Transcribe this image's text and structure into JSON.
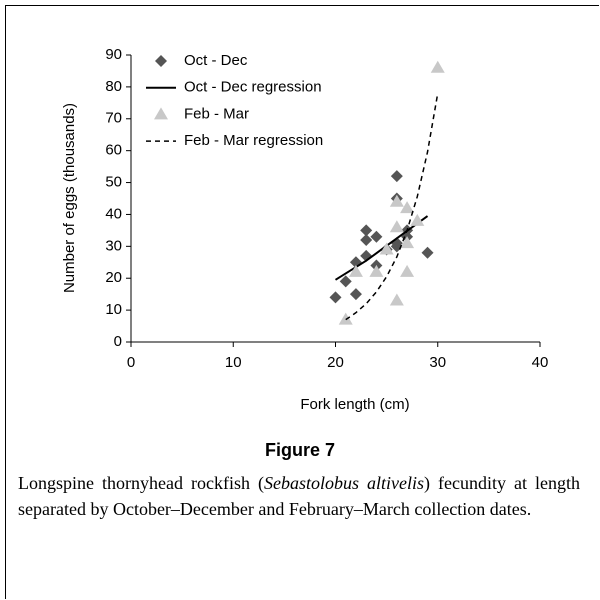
{
  "chart_data": {
    "type": "scatter",
    "xlabel": "Fork length (cm)",
    "ylabel": "Number of eggs (thousands)",
    "xlim": [
      0,
      40
    ],
    "xticks": [
      0,
      10,
      20,
      30,
      40
    ],
    "ylim": [
      0,
      90
    ],
    "yticks": [
      0,
      10,
      20,
      30,
      40,
      50,
      60,
      70,
      80,
      90
    ],
    "grid": false,
    "legend": "upper left",
    "series": [
      {
        "name": "Oct - Dec",
        "color": "#555555",
        "marker": "diamond",
        "x": [
          20,
          21,
          22,
          22,
          23,
          23,
          23,
          24,
          24,
          25,
          26,
          26,
          26,
          26,
          27,
          27,
          29
        ],
        "values": [
          14,
          19,
          25,
          15,
          35,
          32,
          27,
          33,
          24,
          29,
          52,
          45,
          31,
          30,
          35,
          33,
          28
        ]
      },
      {
        "name": "Oct - Dec regression",
        "color": "#000000",
        "marker": "line-solid",
        "x": [
          20,
          23,
          26,
          29
        ],
        "values": [
          19.5,
          25.5,
          32.5,
          39.5
        ]
      },
      {
        "name": "Feb - Mar",
        "color": "#c8c8c8",
        "marker": "triangle",
        "x": [
          21,
          22,
          24,
          25,
          26,
          26,
          26,
          27,
          27,
          27,
          28,
          30
        ],
        "values": [
          7,
          22,
          22,
          29,
          13,
          44,
          36,
          42,
          31,
          22,
          38,
          86
        ]
      },
      {
        "name": "Feb - Mar regression",
        "color": "#000000",
        "marker": "line-dashed",
        "x": [
          21,
          22,
          23,
          24,
          25,
          26,
          27,
          28,
          29,
          30
        ],
        "values": [
          7,
          9.2,
          12,
          15.7,
          20.5,
          26.7,
          35,
          45.6,
          59.6,
          78
        ]
      }
    ]
  },
  "figure": {
    "label": "Figure 7",
    "caption": {
      "before": "Longspine thornyhead rockfish (",
      "italic": "Sebastolobus altivelis",
      "after": ") fecundity at length separated by October–December and February–March collection dates."
    }
  }
}
